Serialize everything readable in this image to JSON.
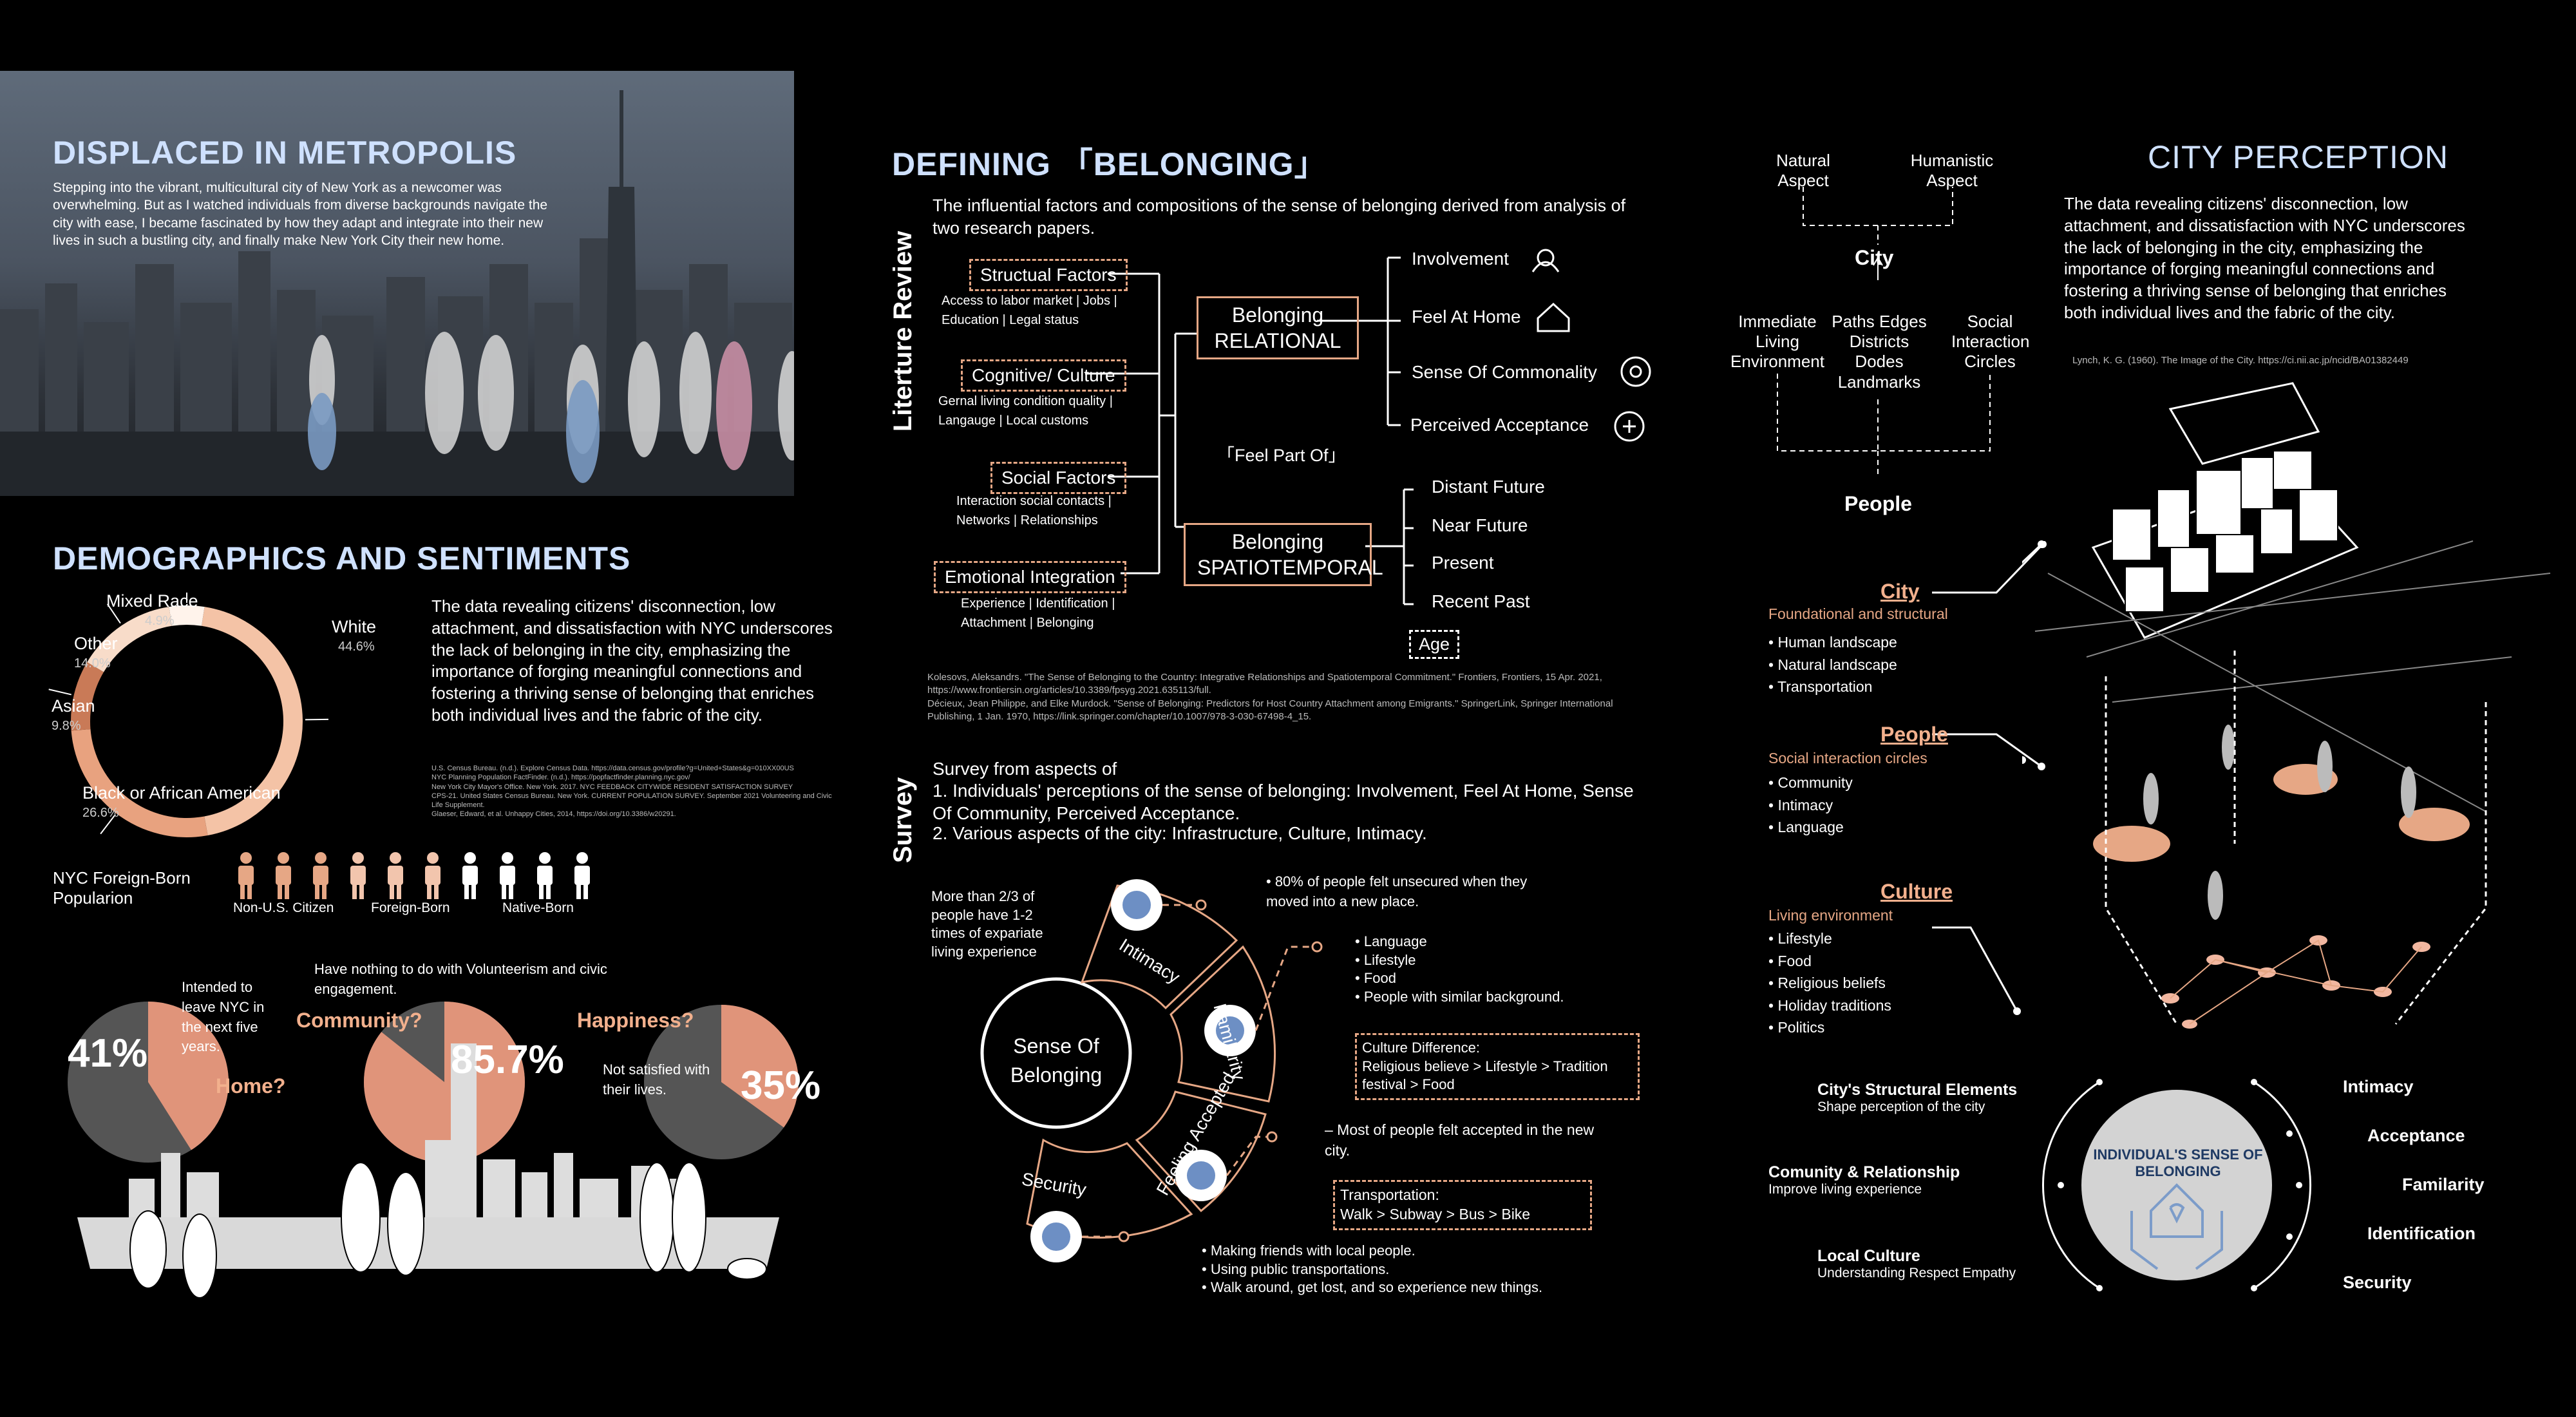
{
  "left": {
    "title": "DISPLACED IN METROPOLIS",
    "intro": "Stepping into the vibrant, multicultural city of New York as a newcomer was overwhelming. But as I watched individuals from diverse backgrounds navigate the city with ease, I became fascinated by how they adapt and integrate into their new lives in such a bustling city, and finally make New York City their new home.",
    "demo_title": "DEMOGRAPHICS AND SENTIMENTS",
    "demo_text": "The data revealing citizens' disconnection, low attachment, and dissatisfaction with NYC underscores the lack of belonging in the city, emphasizing the importance of forging meaningful connections and fostering a thriving sense of belonging that enriches both individual lives and the fabric of the city.",
    "refs": [
      "U.S. Census Bureau. (n.d.). Explore Census Data. https://data.census.gov/profile?g=United+States&g=010XX00US",
      "NYC Planning Population FactFinder. (n.d.). https://popfactfinder.planning.nyc.gov/",
      "New York City Mayor's Office. New York. 2017. NYC FEEDBACK CITYWIDE RESIDENT SATISFACTION SURVEY",
      "CPS-21. United States Census Bureau. New York. CURRENT POPULATION SURVEY. September 2021 Volunteering and Civic Life Supplement.",
      "Glaeser, Edward, et al. Unhappy Cities, 2014, https://doi.org/10.3386/w20291."
    ],
    "foreign_label": "NYC Foreign-Born Popularion",
    "person_labels": [
      "Non-U.S. Citizen",
      "Foreign-Born",
      "Native-Born"
    ],
    "stats": {
      "home_pct": "41%",
      "home_q": "Home?",
      "home_note": "Intended to leave NYC in the next five years.",
      "community_pct": "85.7%",
      "community_q": "Community?",
      "community_note": "Have nothing to do with Volunteerism and civic engagement.",
      "happiness_pct": "35%",
      "happiness_q": "Happiness?",
      "happiness_note": "Not satisfied with their lives."
    }
  },
  "chart_data": [
    {
      "type": "pie",
      "categories": [
        "White",
        "Black or African American",
        "Asian",
        "Other",
        "Mixed Race"
      ],
      "values": [
        44.6,
        26.6,
        9.8,
        14.0,
        4.9
      ],
      "value_labels": [
        "44.6%",
        "26.6%",
        "9.8%",
        "14.0%",
        "4.9%"
      ],
      "colors": [
        "#f4c3a6",
        "#e8a27f",
        "#c97a57",
        "#f8dcc9",
        "#fff3eb"
      ]
    },
    {
      "type": "pie",
      "categories": [
        "Intended to leave NYC in the next five years.",
        ""
      ],
      "values": [
        41,
        59
      ],
      "colors": [
        "#e0947a",
        "#555555"
      ]
    },
    {
      "type": "pie",
      "categories": [
        "Have nothing to do with Volunteerism and civic engagement.",
        ""
      ],
      "values": [
        85.7,
        14.3
      ],
      "colors": [
        "#e0947a",
        "#555555"
      ]
    },
    {
      "type": "pie",
      "categories": [
        "Not satisfied with their lives.",
        ""
      ],
      "values": [
        35,
        65
      ],
      "colors": [
        "#e0947a",
        "#555555"
      ]
    }
  ],
  "middle": {
    "title": "DEFINING 「BELONGING」",
    "lit_label": "Literture Review",
    "lit_intro": "The influential factors and compositions of the sense of belonging derived from analysis of two research papers.",
    "factors": [
      {
        "name": "Structual Factors",
        "sub": "Access to labor market | Jobs | Education | Legal status"
      },
      {
        "name": "Cognitive/ Culture",
        "sub": "Gernal living condition quality | Langauge | Local customs"
      },
      {
        "name": "Social Factors",
        "sub": "Interaction social contacts | Networks | Relationships"
      },
      {
        "name": "Emotional Integration",
        "sub": "Experience | Identification | Attachment | Belonging"
      }
    ],
    "relational": "Belonging RELATIONAL",
    "spatiotemporal": "Belonging SPATIOTEMPORAL",
    "feel_part": "「Feel Part Of」",
    "relational_items": [
      "Involvement",
      "Feel At Home",
      "Sense Of Commonality",
      "Perceived Acceptance"
    ],
    "time_items": [
      "Distant Future",
      "Near Future",
      "Present",
      "Recent Past"
    ],
    "age": "Age",
    "refs": [
      "Kolesovs, Aleksandrs. \"The Sense of Belonging to the Country: Integrative Relationships and Spatiotemporal Commitment.\" Frontiers, Frontiers, 15 Apr. 2021, https://www.frontiersin.org/articles/10.3389/fpsyg.2021.635113/full.",
      "Décieux, Jean Philippe, and Elke Murdock. \"Sense of Belonging: Predictors for Host Country Attachment among Emigrants.\" SpringerLink, Springer International Publishing, 1 Jan. 1970, https://link.springer.com/chapter/10.1007/978-3-030-67498-4_15."
    ],
    "survey_label": "Survey",
    "survey_intro": "Survey from aspects of",
    "survey_points": [
      "1. Individuals' perceptions of the sense of belonging: Involvement, Feel At Home, Sense Of Community, Perceived Acceptance.",
      "2. Various aspects of the city: Infrastructure, Culture, Intimacy."
    ],
    "center": "Sense Of Belonging",
    "petals": [
      "Intimacy",
      "Familarity",
      "Feeling Accepted",
      "Security"
    ],
    "note_intimacy": "More than 2/3 of people have 1-2 times of expariate living experience",
    "note_unsecured": "• 80% of people felt unsecured when they moved into a new place.",
    "list_familiarity": [
      "Language",
      "Lifestyle",
      "Food",
      "People with similar background."
    ],
    "culture_diff_title": "Culture Difference:",
    "culture_diff_body": "Religious believe > Lifestyle > Tradition festival > Food",
    "accepted_note": "– Most of people felt accepted in the new city.",
    "transport_title": "Transportation:",
    "transport_body": "Walk > Subway > Bus > Bike",
    "security_list": [
      "Making friends with local people.",
      "Using public transportations.",
      "Walk around, get lost, and so experience new things."
    ]
  },
  "right": {
    "title": "CITY PERCEPTION",
    "natural": "Natural Aspect",
    "humanistic": "Humanistic Aspect",
    "city": "City",
    "immediate": "Immediate Living Environment",
    "paths": "Paths Edges Districts Dodes Landmarks",
    "social": "Social Interaction Circles",
    "people": "People",
    "text": "The data revealing citizens' disconnection, low attachment, and dissatisfaction with NYC underscores the lack of belonging in the city, emphasizing the importance of forging meaningful connections and fostering a thriving sense of belonging that enriches both individual lives and the fabric of the city.",
    "ref": "Lynch, K. G. (1960). The Image of the City. https://ci.nii.ac.jp/ncid/BA01382449",
    "city_h": "City",
    "city_sub": "Foundational and structural",
    "city_list": [
      "Human landscape",
      "Natural landscape",
      "Transportation"
    ],
    "people_h": "People",
    "people_sub": "Social interaction circles",
    "people_list": [
      "Community",
      "Intimacy",
      "Language"
    ],
    "culture_h": "Culture",
    "culture_sub": "Living environment",
    "culture_list": [
      "Lifestyle",
      "Food",
      "Religious beliefs",
      "Holiday traditions",
      "Politics"
    ],
    "left_items": [
      {
        "h": "City's Structural Elements",
        "s": "Shape perception of the city"
      },
      {
        "h": "Comunity & Relationship",
        "s": "Improve living experience"
      },
      {
        "h": "Local Culture",
        "s": "Understanding Respect Empathy"
      }
    ],
    "core": "INDIVIDUAL'S SENSE OF BELONGING",
    "right_items": [
      "Intimacy",
      "Acceptance",
      "Familarity",
      "Identification",
      "Security"
    ]
  }
}
